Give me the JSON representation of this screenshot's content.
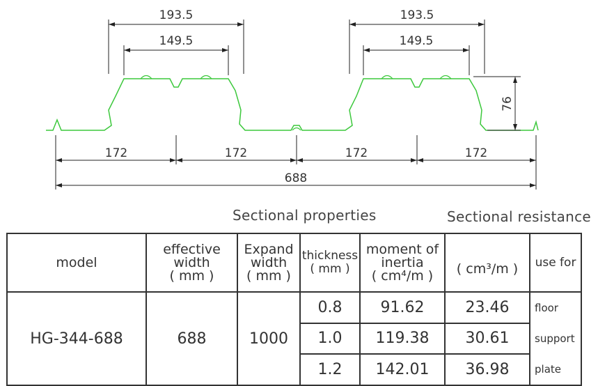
{
  "diagram": {
    "dimensions": {
      "top_outer_left": "193.5",
      "top_inner_left": "149.5",
      "top_outer_right": "193.5",
      "top_inner_right": "149.5",
      "height": "76",
      "pitch_1": "172",
      "pitch_2": "172",
      "pitch_3": "172",
      "pitch_4": "172",
      "total_width": "688"
    },
    "profile_color": "#3cc83c",
    "line_color": "#222222"
  },
  "headings": {
    "sectional_properties": "Sectional properties",
    "sectional_resistance": "Sectional resistance"
  },
  "table": {
    "headers": {
      "model": "model",
      "effective_width": "effective width",
      "effective_width_unit": "( mm )",
      "expand_width": "Expand width",
      "expand_width_unit": "( mm )",
      "thickness": "thickness",
      "thickness_unit": "( mm )",
      "moment_of_inertia": "moment of inertia",
      "moment_unit": "( cm⁴/m )",
      "resistance_unit": "( cm³/m )",
      "use_for": "use for"
    },
    "model": "HG-344-688",
    "effective_width": "688",
    "expand_width": "1000",
    "rows": [
      {
        "thickness": "0.8",
        "moment": "91.62",
        "resistance": "23.46"
      },
      {
        "thickness": "1.0",
        "moment": "119.38",
        "resistance": "30.61"
      },
      {
        "thickness": "1.2",
        "moment": "142.01",
        "resistance": "36.98"
      }
    ],
    "use_for": [
      "floor",
      "support",
      "plate"
    ]
  }
}
